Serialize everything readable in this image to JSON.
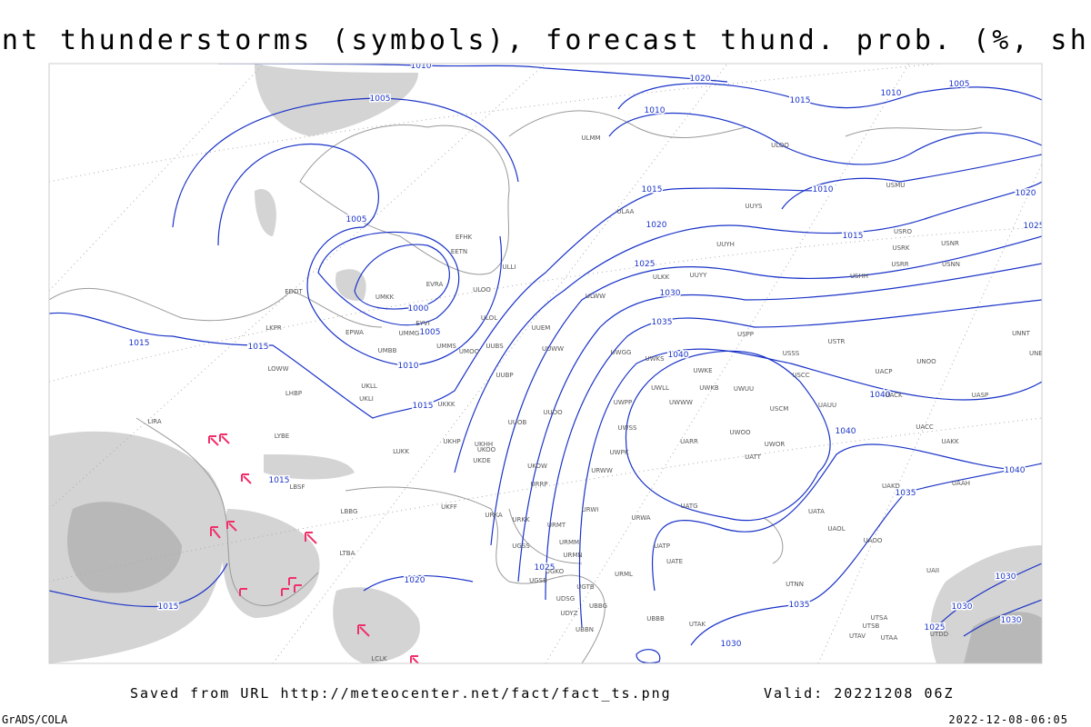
{
  "title": "Current thunderstorms (symbols), forecast thund. prob. (%, shaded)",
  "isobar_labels": [
    "1010",
    "1020",
    "1015",
    "1010",
    "1005",
    "1005",
    "1010",
    "1015",
    "1010",
    "1020",
    "1025",
    "1015",
    "1005",
    "1020",
    "1025",
    "1030",
    "1000",
    "1005",
    "1035",
    "1040",
    "1015",
    "1015",
    "1010",
    "1015",
    "1040",
    "1040",
    "1040",
    "1015",
    "1035",
    "1025",
    "1020",
    "1015",
    "1035",
    "1030",
    "1030",
    "1030",
    "1025",
    "1030"
  ],
  "stations": [
    "ULMM",
    "ULOO",
    "UUYS",
    "USMU",
    "ULAA",
    "EFHK",
    "EETN",
    "UUYH",
    "USRO",
    "USRK",
    "USNR",
    "USRR",
    "USNN",
    "USHH",
    "ULLI",
    "ULKK",
    "UUYY",
    "EVRA",
    "ULOO",
    "EDDT",
    "UMKK",
    "ULWW",
    "EYVI",
    "ULOL",
    "UUEM",
    "EPWA",
    "UMMG",
    "LKPR",
    "USPP",
    "USTR",
    "UMBB",
    "UMMS",
    "UMOO",
    "UUBS",
    "UUWW",
    "UWGG",
    "UWKS",
    "USSS",
    "UNBB",
    "LOWW",
    "UKLL",
    "UUBP",
    "UWKE",
    "UACP",
    "UNOO",
    "UNNT",
    "UKLI",
    "LHBP",
    "UKKK",
    "UWKB",
    "UWUU",
    "UWLL",
    "UWWW",
    "UWPP",
    "USCC",
    "UACK",
    "UASP",
    "USCM",
    "UAUU",
    "UUOB",
    "UUOO",
    "UWSS",
    "UWOO",
    "UACC",
    "LIRA",
    "UWOR",
    "UAKK",
    "LYBE",
    "LUKK",
    "UKHH",
    "UKOO",
    "UKHP",
    "UARR",
    "UATT",
    "UWPK",
    "UKDE",
    "URWW",
    "UKOW",
    "LBSF",
    "URRP",
    "UAKD",
    "UAAH",
    "URWI",
    "UKFF",
    "LBBG",
    "URKA",
    "UATG",
    "UATA",
    "URKK",
    "URMT",
    "URWA",
    "UAOL",
    "UAOO",
    "LTBA",
    "URMM",
    "UGSS",
    "UATP",
    "URMN",
    "UATE",
    "UGKO",
    "UGSB",
    "URML",
    "UGTB",
    "UTNN",
    "UDSG",
    "UBBG",
    "UTSA",
    "UTSB",
    "UDYZ",
    "UBBB",
    "UTAK",
    "UBBN",
    "UTAV",
    "UTAA",
    "LCLK",
    "UTDD",
    "UAII"
  ],
  "footer": {
    "saved": "Saved from URL http://meteocenter.net/fact/fact_ts.png",
    "valid": "Valid: 20221208 06Z",
    "software": "GrADS/COLA",
    "timestamp": "2022-12-08-06:05"
  }
}
